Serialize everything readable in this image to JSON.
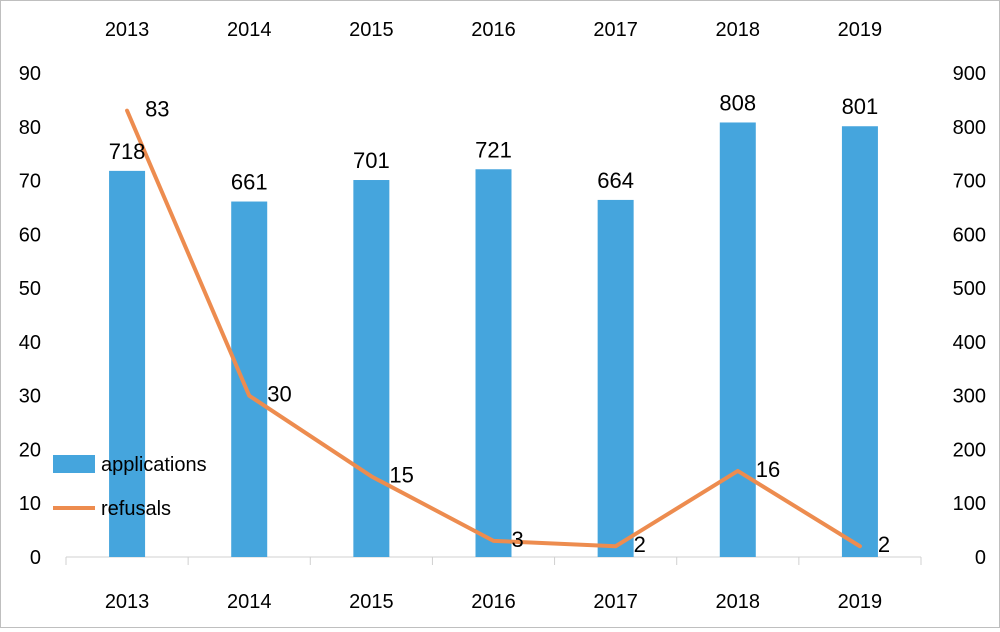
{
  "chart_data": {
    "type": "bar",
    "categories": [
      "2013",
      "2014",
      "2015",
      "2016",
      "2017",
      "2018",
      "2019"
    ],
    "series": [
      {
        "name": "applications",
        "type": "bar",
        "axis": "right",
        "color": "#45a5dd",
        "values": [
          718,
          661,
          701,
          721,
          664,
          808,
          801
        ]
      },
      {
        "name": "refusals",
        "type": "line",
        "axis": "left",
        "color": "#ed8c4f",
        "values": [
          83,
          30,
          15,
          3,
          2,
          16,
          2
        ]
      }
    ],
    "left_axis": {
      "min": 0,
      "max": 90,
      "step": 10,
      "ticks": [
        "0",
        "10",
        "20",
        "30",
        "40",
        "50",
        "60",
        "70",
        "80",
        "90"
      ]
    },
    "right_axis": {
      "min": 0,
      "max": 900,
      "step": 100,
      "ticks": [
        "0",
        "100",
        "200",
        "300",
        "400",
        "500",
        "600",
        "700",
        "800",
        "900"
      ]
    },
    "title": "",
    "xlabel": "",
    "ylabel": "",
    "grid": false,
    "category_labels_top": true,
    "category_labels_bottom": true,
    "legend_placement": "left, lower-middle"
  }
}
